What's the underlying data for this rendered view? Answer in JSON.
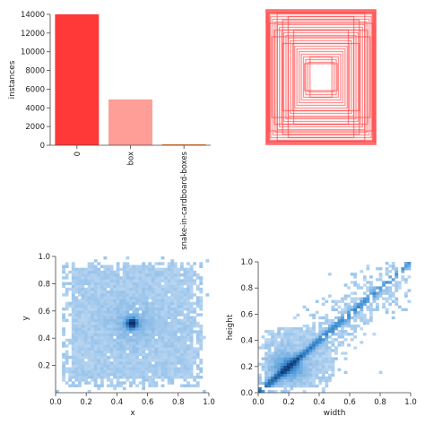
{
  "chart_data": [
    {
      "type": "bar",
      "categories": [
        "0",
        "box",
        "snake-in-cardboard-boxes"
      ],
      "values": [
        14000,
        4900,
        100
      ],
      "ylabel": "instances",
      "xlabel": "",
      "ylim": [
        0,
        14000
      ],
      "yticks": [
        0,
        2000,
        4000,
        6000,
        8000,
        10000,
        12000,
        14000
      ],
      "colors": [
        "#ff3838",
        "#ff9d97",
        "#ff701f"
      ]
    },
    {
      "type": "boxes-overlay",
      "color": "#ff3838",
      "box_sizes": [
        [
          1.0,
          1.0
        ],
        [
          0.98,
          0.97
        ],
        [
          0.95,
          0.95
        ],
        [
          0.92,
          0.9
        ],
        [
          0.88,
          0.86
        ],
        [
          0.84,
          0.82
        ],
        [
          0.8,
          0.78
        ],
        [
          0.76,
          0.74
        ],
        [
          0.72,
          0.7
        ],
        [
          0.68,
          0.66
        ],
        [
          0.64,
          0.62
        ],
        [
          0.6,
          0.58
        ],
        [
          0.56,
          0.54
        ],
        [
          0.52,
          0.5
        ],
        [
          0.48,
          0.46
        ],
        [
          0.44,
          0.42
        ],
        [
          0.4,
          0.38
        ],
        [
          0.36,
          0.34
        ],
        [
          0.32,
          0.3
        ],
        [
          0.28,
          0.26
        ],
        [
          0.24,
          0.22
        ],
        [
          0.9,
          0.6
        ],
        [
          0.6,
          0.9
        ],
        [
          0.7,
          0.5
        ],
        [
          0.5,
          0.7
        ],
        [
          0.95,
          0.8
        ],
        [
          0.8,
          0.95
        ],
        [
          0.85,
          0.7
        ],
        [
          0.7,
          0.85
        ],
        [
          0.3,
          0.2
        ],
        [
          0.2,
          0.3
        ]
      ]
    },
    {
      "type": "heatmap",
      "xlabel": "x",
      "ylabel": "y",
      "xlim": [
        0.0,
        1.0
      ],
      "ylim": [
        0.0,
        1.0
      ],
      "xticks": [
        "0.0",
        "0.2",
        "0.4",
        "0.6",
        "0.8",
        "1.0"
      ],
      "yticks": [
        "0.2",
        "0.4",
        "0.6",
        "0.8",
        "1.0"
      ],
      "peak": [
        0.5,
        0.51
      ],
      "x_extent": [
        0.05,
        0.95
      ],
      "y_extent": [
        0.05,
        0.96
      ]
    },
    {
      "type": "heatmap",
      "xlabel": "width",
      "ylabel": "height",
      "xlim": [
        0.0,
        1.0
      ],
      "ylim": [
        0.0,
        1.0
      ],
      "xticks": [
        "0.0",
        "0.2",
        "0.4",
        "0.6",
        "0.8",
        "1.0"
      ],
      "yticks": [
        "0.0",
        "0.2",
        "0.4",
        "0.6",
        "0.8",
        "1.0"
      ],
      "peak": [
        0.2,
        0.2
      ],
      "trend": "diagonal"
    }
  ]
}
